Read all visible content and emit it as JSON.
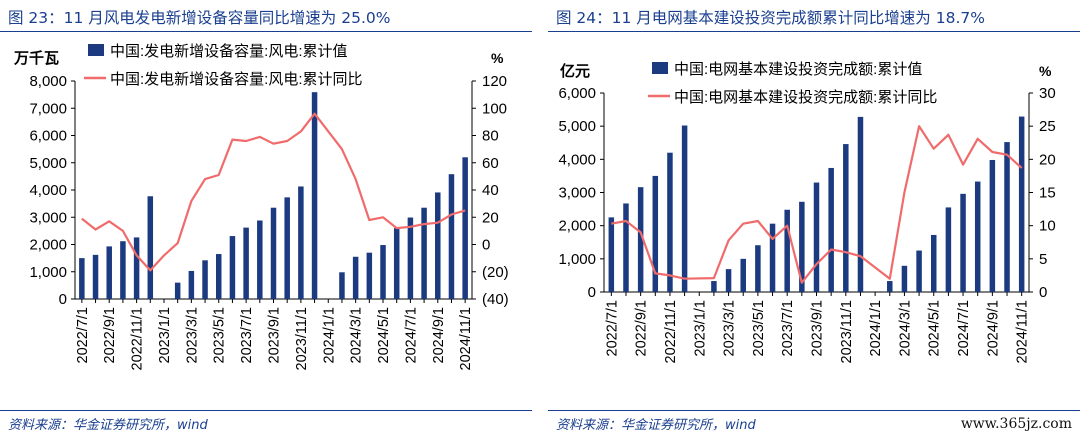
{
  "page": {
    "left_title": "图 23：11 月风电发电新增设备容量同比增速为 25.0%",
    "right_title": "图 24：11 月电网基本建设投资完成额累计同比增速为 18.7%",
    "source_left": "资料来源：华金证券研究所，wind",
    "source_right": "资料来源：华金证券研究所，wind",
    "watermark": "www.365jz.com"
  },
  "chart_data": [
    {
      "type": "bar",
      "categories": [
        "2022/7/1",
        "2022/8/1",
        "2022/9/1",
        "2022/10/1",
        "2022/11/1",
        "2022/12/1",
        "2023/1/1",
        "2023/2/1",
        "2023/3/1",
        "2023/4/1",
        "2023/5/1",
        "2023/6/1",
        "2023/7/1",
        "2023/8/1",
        "2023/9/1",
        "2023/10/1",
        "2023/11/1",
        "2023/12/1",
        "2024/1/1",
        "2024/2/1",
        "2024/3/1",
        "2024/4/1",
        "2024/5/1",
        "2024/6/1",
        "2024/7/1",
        "2024/8/1",
        "2024/9/1",
        "2024/10/1",
        "2024/11/1"
      ],
      "tick_labels": [
        "2022/7/1",
        "2022/9/1",
        "2022/11/1",
        "2023/1/1",
        "2023/3/1",
        "2023/5/1",
        "2023/7/1",
        "2023/9/1",
        "2023/11/1",
        "2024/1/1",
        "2024/3/1",
        "2024/5/1",
        "2024/7/1",
        "2024/9/1",
        "2024/11/1"
      ],
      "series": [
        {
          "name": "中国:发电新增设备容量:风电:累计值",
          "kind": "bar",
          "color": "#1c3a80",
          "values": [
            1500,
            1620,
            1930,
            2120,
            2260,
            3770,
            null,
            600,
            1030,
            1420,
            1650,
            2310,
            2620,
            2880,
            3350,
            3730,
            4130,
            7590,
            null,
            980,
            1550,
            1700,
            1980,
            2600,
            2990,
            3350,
            3910,
            4580,
            5200
          ]
        },
        {
          "name": "中国:发电新增设备容量:风电:累计同比",
          "kind": "line",
          "axis": "right",
          "color": "#f06b6b",
          "values": [
            19,
            11,
            17,
            10,
            -8,
            -19,
            -8,
            1,
            32,
            48,
            51,
            77,
            76,
            79,
            74,
            76,
            83,
            96,
            83,
            70,
            48,
            18,
            20,
            12,
            13,
            15,
            16,
            22,
            25
          ]
        }
      ],
      "ylabel_left": "万千瓦",
      "ylabel_right": "%",
      "yticks_left": [
        "0",
        "1,000",
        "2,000",
        "3,000",
        "4,000",
        "5,000",
        "6,000",
        "7,000",
        "8,000"
      ],
      "yticks_right": [
        "(40)",
        "(20)",
        "0",
        "20",
        "40",
        "60",
        "80",
        "100",
        "120"
      ],
      "ylim_left": [
        0,
        8000
      ],
      "ylim_right": [
        -40,
        120
      ],
      "legend_position": "top-left",
      "grid": false
    },
    {
      "type": "bar",
      "categories": [
        "2022/7/1",
        "2022/8/1",
        "2022/9/1",
        "2022/10/1",
        "2022/11/1",
        "2022/12/1",
        "2023/1/1",
        "2023/2/1",
        "2023/3/1",
        "2023/4/1",
        "2023/5/1",
        "2023/6/1",
        "2023/7/1",
        "2023/8/1",
        "2023/9/1",
        "2023/10/1",
        "2023/11/1",
        "2023/12/1",
        "2024/1/1",
        "2024/2/1",
        "2024/3/1",
        "2024/4/1",
        "2024/5/1",
        "2024/6/1",
        "2024/7/1",
        "2024/8/1",
        "2024/9/1",
        "2024/10/1",
        "2024/11/1"
      ],
      "tick_labels": [
        "2022/7/1",
        "2022/9/1",
        "2022/11/1",
        "2023/1/1",
        "2023/3/1",
        "2023/5/1",
        "2023/7/1",
        "2023/9/1",
        "2023/11/1",
        "2024/1/1",
        "2024/3/1",
        "2024/5/1",
        "2024/7/1",
        "2024/9/1",
        "2024/11/1"
      ],
      "series": [
        {
          "name": "中国:电网基本建设投资完成额:累计值",
          "kind": "bar",
          "color": "#1c3a80",
          "values": [
            2250,
            2670,
            3160,
            3500,
            4200,
            5020,
            null,
            330,
            690,
            1000,
            1410,
            2060,
            2480,
            2720,
            3300,
            3740,
            4460,
            5280,
            null,
            330,
            790,
            1250,
            1720,
            2550,
            2960,
            3330,
            3980,
            4520,
            5290
          ]
        },
        {
          "name": "中国:电网基本建设投资完成额:累计同比",
          "kind": "line",
          "axis": "right",
          "color": "#f06b6b",
          "values": [
            10.3,
            10.7,
            9.0,
            2.8,
            2.5,
            2.0,
            null,
            2.1,
            7.8,
            10.3,
            10.7,
            8.0,
            10.0,
            1.4,
            4.2,
            6.4,
            6.0,
            5.4,
            null,
            2.0,
            15.0,
            25.0,
            21.6,
            23.7,
            19.2,
            23.1,
            21.1,
            20.7,
            18.7
          ]
        }
      ],
      "ylabel_left": "亿元",
      "ylabel_right": "%",
      "yticks_left": [
        "0",
        "1,000",
        "2,000",
        "3,000",
        "4,000",
        "5,000",
        "6,000"
      ],
      "yticks_right": [
        "0",
        "5",
        "10",
        "15",
        "20",
        "25",
        "30"
      ],
      "ylim_left": [
        0,
        6000
      ],
      "ylim_right": [
        0,
        30
      ],
      "legend_position": "top-left",
      "grid": false
    }
  ]
}
